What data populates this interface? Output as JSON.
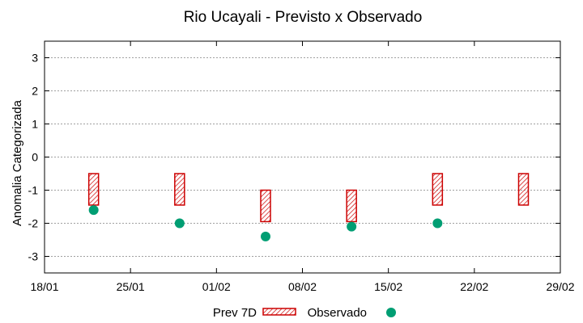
{
  "chart_data": {
    "type": "scatter",
    "title": "Rio Ucayali - Previsto x Observado",
    "ylabel": "Anomalia Categorizada",
    "xlabel": "",
    "xlim": [
      "18/01",
      "29/02"
    ],
    "ylim": [
      -3.5,
      3.5
    ],
    "x_ticks": [
      "18/01",
      "25/01",
      "01/02",
      "08/02",
      "15/02",
      "22/02",
      "29/02"
    ],
    "y_ticks": [
      "3",
      "2",
      "1",
      "0",
      "-1",
      "-2",
      "-3"
    ],
    "grid": "horizontal dotted",
    "legend_position": "bottom",
    "series": [
      {
        "name": "Prev 7D",
        "style": "hatched rectangles",
        "color": "#cc0000",
        "points": [
          {
            "x": "22/01",
            "low": -1.45,
            "high": -0.5
          },
          {
            "x": "29/01",
            "low": -1.45,
            "high": -0.5
          },
          {
            "x": "05/02",
            "low": -1.95,
            "high": -1.0
          },
          {
            "x": "12/02",
            "low": -1.95,
            "high": -1.0
          },
          {
            "x": "19/02",
            "low": -1.45,
            "high": -0.5
          },
          {
            "x": "26/02",
            "low": -1.45,
            "high": -0.5
          }
        ]
      },
      {
        "name": "Observado",
        "style": "filled circles",
        "color": "#009e73",
        "points": [
          {
            "x": "22/01",
            "y": -1.6
          },
          {
            "x": "29/01",
            "y": -2.0
          },
          {
            "x": "05/02",
            "y": -2.4
          },
          {
            "x": "12/02",
            "y": -2.1
          },
          {
            "x": "19/02",
            "y": -2.0
          }
        ]
      }
    ]
  }
}
